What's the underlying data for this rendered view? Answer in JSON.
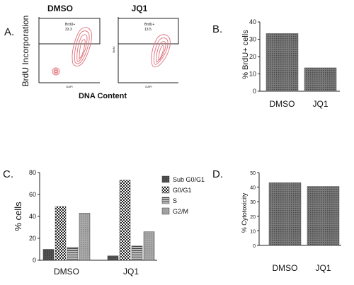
{
  "panels": {
    "a": {
      "letter": "A.",
      "group_labels": [
        "DMSO",
        "JQ1"
      ],
      "ylabel": "BrdU Incorporation",
      "xlabel": "DNA Content",
      "gates": [
        {
          "label": "BrdU+",
          "value": "33.3"
        },
        {
          "label": "BrdU+",
          "value": "13.5"
        }
      ],
      "plot_axis_x": "DAPI",
      "plot_axis_y": "BrdU"
    },
    "b": {
      "letter": "B."
    },
    "c": {
      "letter": "C."
    },
    "d": {
      "letter": "D."
    }
  },
  "colors": {
    "bar_fill": "#6e6e6e",
    "contour": "#e0707a",
    "axis": "#222222"
  },
  "chart_data": [
    {
      "id": "b",
      "type": "bar",
      "categories": [
        "DMSO",
        "JQ1"
      ],
      "values": [
        33.3,
        13.5
      ],
      "ylabel": "% BrdU+ cells",
      "ylim": [
        0,
        40
      ],
      "yticks": [
        0,
        10,
        20,
        30,
        40
      ]
    },
    {
      "id": "c",
      "type": "bar",
      "categories": [
        "DMSO",
        "JQ1"
      ],
      "series": [
        {
          "name": "Sub G0/G1",
          "values": [
            10,
            4
          ],
          "pattern": "pat-dark"
        },
        {
          "name": "G0/G1",
          "values": [
            49,
            73
          ],
          "pattern": "pat-check"
        },
        {
          "name": "S",
          "values": [
            12,
            13
          ],
          "pattern": "pat-hline"
        },
        {
          "name": "G2/M",
          "values": [
            43,
            26
          ],
          "pattern": "pat-light"
        }
      ],
      "ylabel": "% cells",
      "ylim": [
        0,
        80
      ],
      "yticks": [
        0,
        20,
        40,
        60,
        80
      ],
      "legend": "right"
    },
    {
      "id": "d",
      "type": "bar",
      "categories": [
        "DMSO",
        "JQ1"
      ],
      "values": [
        43,
        40.5
      ],
      "ylabel": "% Cytotoxicity",
      "ylim": [
        0,
        50
      ],
      "yticks": [
        0,
        10,
        20,
        30,
        40,
        50
      ]
    }
  ]
}
